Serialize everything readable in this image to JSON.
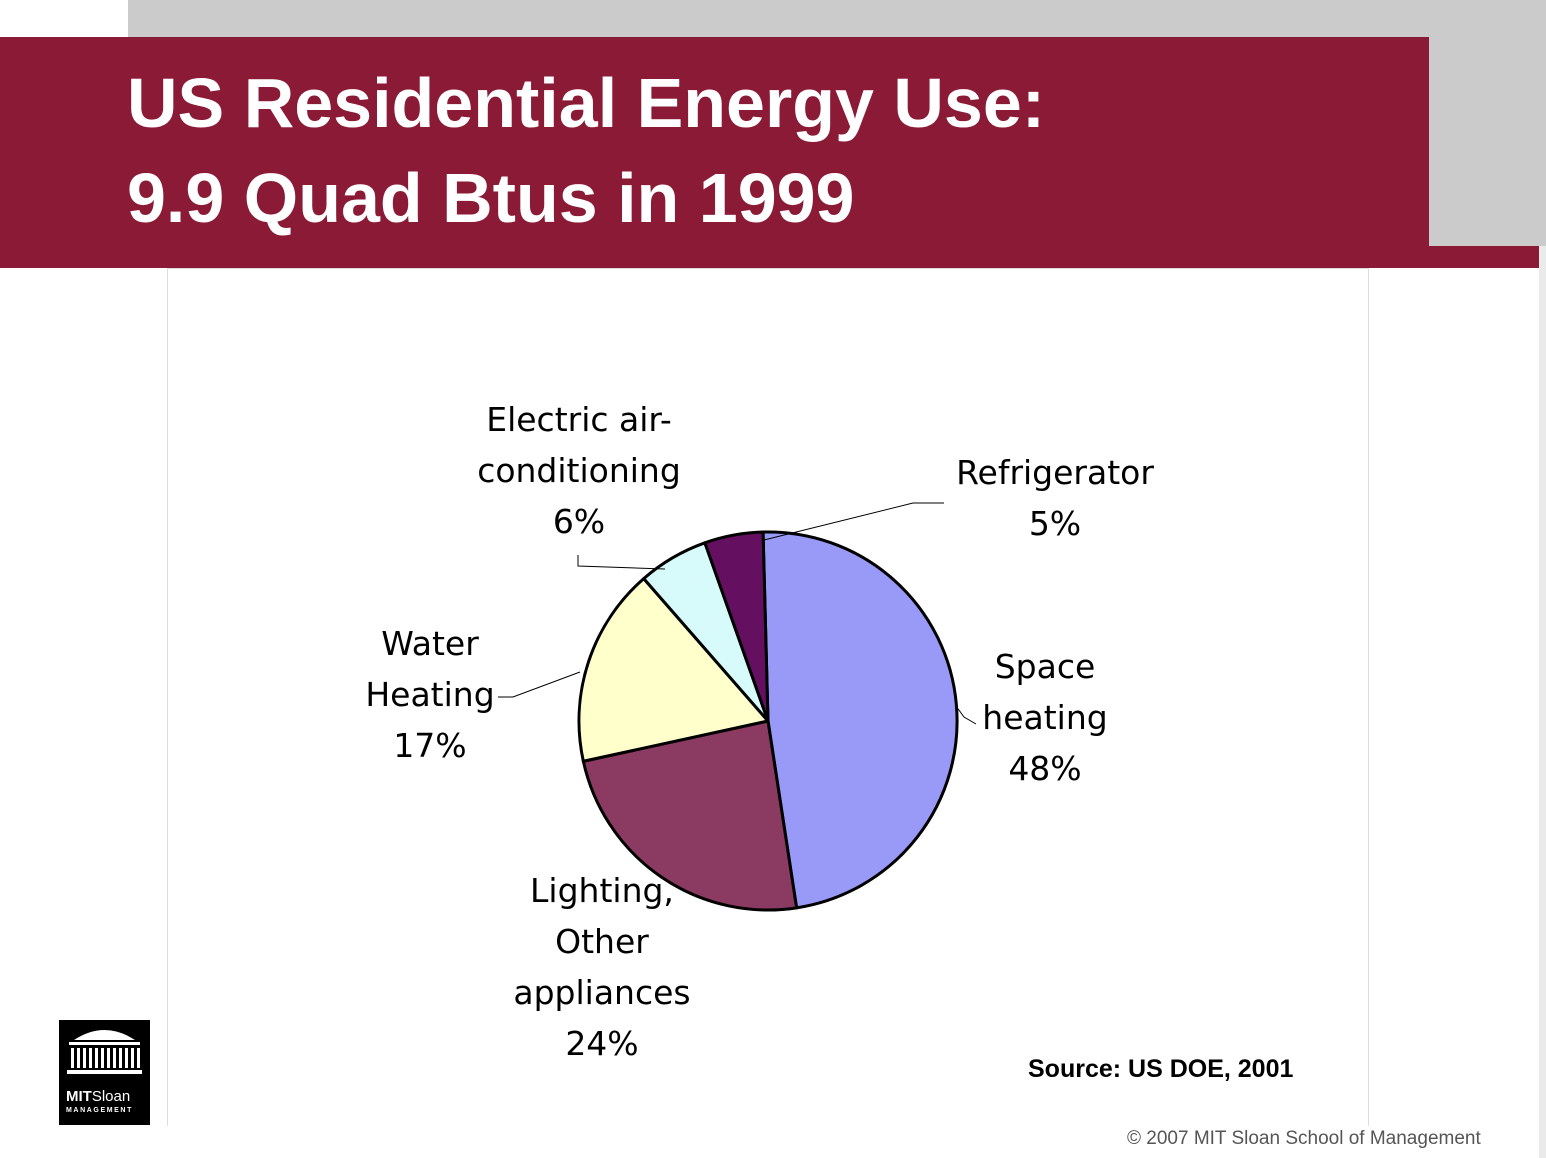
{
  "slide": {
    "title_line1": "US Residential Energy Use:",
    "title_line2": "9.9 Quad Btus in 1999",
    "source": "Source: US DOE, 2001",
    "copyright": "© 2007 MIT Sloan School of Management",
    "logo_text_bold": "MIT",
    "logo_text_regular": "Sloan",
    "logo_subtext": "MANAGEMENT"
  },
  "colors": {
    "title_bar": "#8a1a35",
    "gray_band": "#cbcbcb"
  },
  "chart_data": {
    "type": "pie",
    "title": "",
    "slices": [
      {
        "label": [
          "Space",
          "heating"
        ],
        "value": 48,
        "pct_label": "48%",
        "color": "#9999f7"
      },
      {
        "label": [
          "Lighting,",
          "Other",
          "appliances"
        ],
        "value": 24,
        "pct_label": "24%",
        "color": "#8b3a62"
      },
      {
        "label": [
          "Water",
          "Heating"
        ],
        "value": 17,
        "pct_label": "17%",
        "color": "#ffffcc"
      },
      {
        "label": [
          "Electric air-",
          "conditioning"
        ],
        "value": 6,
        "pct_label": "6%",
        "color": "#d7fbfb"
      },
      {
        "label": [
          "Refrigerator"
        ],
        "value": 5,
        "pct_label": "5%",
        "color": "#650f60"
      }
    ]
  }
}
